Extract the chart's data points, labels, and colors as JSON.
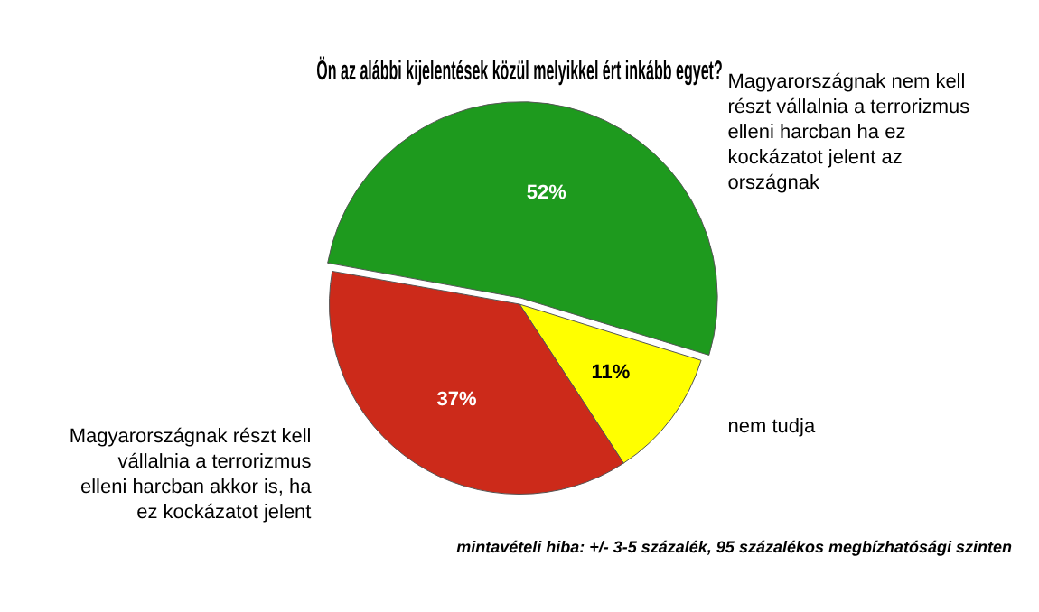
{
  "chart_data": {
    "type": "pie",
    "title": "Ön az alábbi kijelentések közül melyikkel ért inkább egyet?",
    "categories": [
      "Magyarországnak nem kell részt vállalnia a terrorizmus elleni harcban ha ez kockázatot jelent az országnak",
      "nem tudja",
      "Magyarországnak részt kell vállalnia a terrorizmus elleni harcban akkor is, ha ez kockázatot jelent"
    ],
    "values": [
      52,
      11,
      37
    ],
    "colors": [
      "#1e9a1e",
      "#ffff00",
      "#cc2a1a"
    ],
    "value_labels": [
      "52%",
      "11%",
      "37%"
    ],
    "annotations": [
      "mintavételi hiba: +/- 3-5 százalék, 95 százalékos megbízhatósági szinten"
    ],
    "legend": false
  }
}
